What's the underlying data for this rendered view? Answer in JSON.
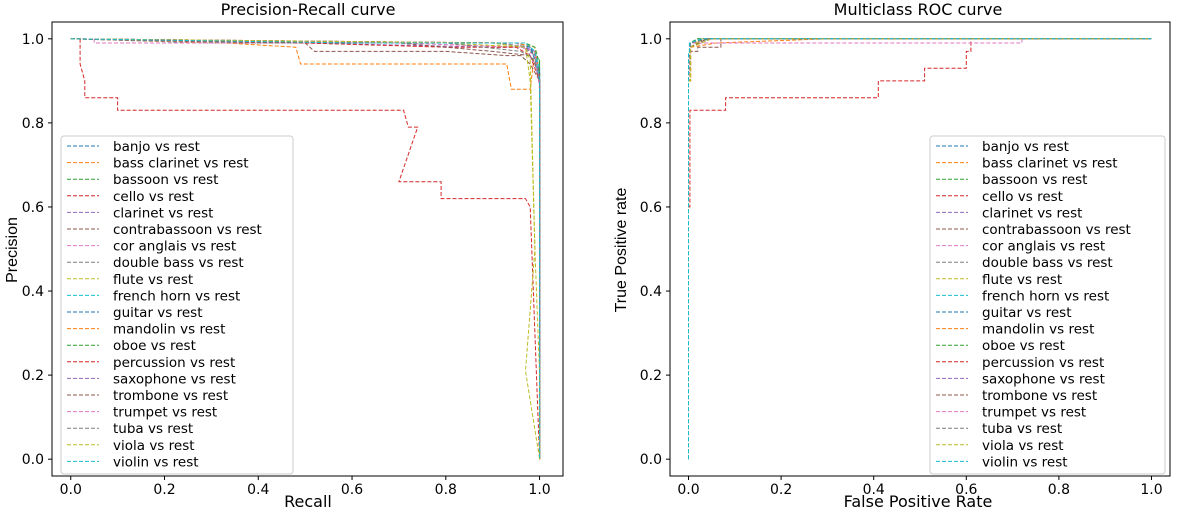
{
  "colors": [
    "#1f77b4",
    "#ff7f0e",
    "#2ca02c",
    "#d62728",
    "#9467bd",
    "#8c564b",
    "#e377c2",
    "#7f7f7f",
    "#bcbd22",
    "#17becf"
  ],
  "chart_data": [
    {
      "type": "line",
      "title": "Precision-Recall curve",
      "xlabel": "Recall",
      "ylabel": "Precision",
      "xlim": [
        -0.04,
        1.05
      ],
      "ylim": [
        -0.04,
        1.04
      ],
      "xticks": [
        0.0,
        0.2,
        0.4,
        0.6,
        0.8,
        1.0
      ],
      "xtick_labels": [
        "0.0",
        "0.2",
        "0.4",
        "0.6",
        "0.8",
        "1.0"
      ],
      "yticks": [
        0.0,
        0.2,
        0.4,
        0.6,
        0.8,
        1.0
      ],
      "ytick_labels": [
        "0.0",
        "0.2",
        "0.4",
        "0.6",
        "0.8",
        "1.0"
      ],
      "legend_position": "center-left",
      "series": [
        {
          "name": "banjo vs rest",
          "x": [
            0.0,
            0.3,
            0.9,
            0.97,
            0.99,
            1.0,
            1.0
          ],
          "y": [
            1.0,
            0.99,
            0.99,
            0.98,
            0.96,
            0.9,
            0.0
          ]
        },
        {
          "name": "bass clarinet vs rest",
          "x": [
            0.0,
            0.33,
            0.48,
            0.49,
            0.93,
            0.94,
            0.98,
            0.99,
            1.0,
            1.0
          ],
          "y": [
            1.0,
            0.99,
            0.98,
            0.94,
            0.94,
            0.88,
            0.88,
            0.97,
            0.9,
            0.0
          ]
        },
        {
          "name": "bassoon vs rest",
          "x": [
            0.0,
            0.6,
            0.95,
            0.98,
            1.0,
            1.0
          ],
          "y": [
            1.0,
            0.99,
            0.99,
            0.97,
            0.95,
            0.0
          ]
        },
        {
          "name": "cello vs rest",
          "x": [
            0.02,
            0.02,
            0.03,
            0.03,
            0.1,
            0.1,
            0.71,
            0.72,
            0.74,
            0.7,
            0.79,
            0.79,
            0.97,
            0.98,
            1.0
          ],
          "y": [
            1.0,
            0.94,
            0.9,
            0.86,
            0.86,
            0.83,
            0.83,
            0.79,
            0.79,
            0.66,
            0.66,
            0.62,
            0.62,
            0.6,
            0.0
          ]
        },
        {
          "name": "clarinet vs rest",
          "x": [
            0.0,
            0.5,
            0.9,
            0.97,
            0.99,
            1.0,
            1.0
          ],
          "y": [
            1.0,
            0.99,
            0.98,
            0.98,
            0.97,
            0.92,
            0.0
          ]
        },
        {
          "name": "contrabassoon vs rest",
          "x": [
            0.0,
            0.5,
            0.52,
            0.8,
            0.93,
            0.96,
            0.98,
            1.0,
            1.0
          ],
          "y": [
            1.0,
            0.99,
            0.97,
            0.97,
            0.96,
            0.96,
            0.94,
            0.9,
            0.0
          ]
        },
        {
          "name": "cor anglais vs rest",
          "x": [
            0.05,
            0.05,
            0.2,
            0.7,
            0.96,
            0.99,
            1.0,
            1.0
          ],
          "y": [
            1.0,
            0.99,
            0.99,
            0.99,
            0.98,
            0.97,
            0.88,
            0.0
          ]
        },
        {
          "name": "double bass vs rest",
          "x": [
            0.0,
            0.4,
            0.95,
            0.98,
            0.99,
            1.0,
            1.0
          ],
          "y": [
            1.0,
            0.99,
            0.99,
            0.98,
            0.96,
            0.9,
            0.0
          ]
        },
        {
          "name": "flute vs rest",
          "x": [
            0.0,
            0.8,
            0.97,
            0.98,
            0.99,
            0.97,
            1.0
          ],
          "y": [
            1.0,
            0.99,
            0.98,
            0.9,
            0.5,
            0.21,
            0.0
          ]
        },
        {
          "name": "french horn vs rest",
          "x": [
            0.0,
            0.5,
            0.97,
            0.99,
            1.0,
            1.0
          ],
          "y": [
            1.0,
            0.99,
            0.99,
            0.97,
            0.93,
            0.0
          ]
        },
        {
          "name": "guitar vs rest",
          "x": [
            0.0,
            0.9,
            0.98,
            1.0,
            1.0
          ],
          "y": [
            1.0,
            0.99,
            0.98,
            0.92,
            0.0
          ]
        },
        {
          "name": "mandolin vs rest",
          "x": [
            0.0,
            0.95,
            0.99,
            1.0,
            1.0
          ],
          "y": [
            1.0,
            0.99,
            0.98,
            0.9,
            0.0
          ]
        },
        {
          "name": "oboe vs rest",
          "x": [
            0.0,
            0.9,
            0.97,
            0.99,
            1.0,
            1.0
          ],
          "y": [
            1.0,
            0.99,
            0.99,
            0.98,
            0.94,
            0.0
          ]
        },
        {
          "name": "percussion vs rest",
          "x": [
            0.0,
            0.5,
            0.8,
            0.95,
            0.98,
            1.0,
            1.0
          ],
          "y": [
            1.0,
            0.99,
            0.98,
            0.98,
            0.96,
            0.9,
            0.0
          ]
        },
        {
          "name": "saxophone vs rest",
          "x": [
            0.0,
            0.92,
            0.97,
            0.99,
            1.0,
            1.0
          ],
          "y": [
            1.0,
            0.99,
            0.98,
            0.94,
            0.9,
            0.0
          ]
        },
        {
          "name": "trombone vs rest",
          "x": [
            0.0,
            0.7,
            0.9,
            0.98,
            1.0,
            1.0
          ],
          "y": [
            1.0,
            0.99,
            0.97,
            0.96,
            0.92,
            0.0
          ]
        },
        {
          "name": "trumpet vs rest",
          "x": [
            0.0,
            0.85,
            0.95,
            0.99,
            1.0,
            1.0
          ],
          "y": [
            1.0,
            0.99,
            0.99,
            0.96,
            0.9,
            0.0
          ]
        },
        {
          "name": "tuba vs rest",
          "x": [
            0.0,
            0.8,
            0.96,
            0.99,
            1.0,
            1.0
          ],
          "y": [
            1.0,
            0.99,
            0.97,
            0.95,
            0.9,
            0.0
          ]
        },
        {
          "name": "viola vs rest",
          "x": [
            0.0,
            0.9,
            0.97,
            0.98,
            0.99,
            1.0,
            1.0
          ],
          "y": [
            1.0,
            0.99,
            0.98,
            0.95,
            0.5,
            0.2,
            0.0
          ]
        },
        {
          "name": "violin vs rest",
          "x": [
            0.0,
            0.6,
            0.97,
            0.99,
            1.0,
            1.0
          ],
          "y": [
            1.0,
            0.99,
            0.99,
            0.97,
            0.9,
            0.0
          ]
        }
      ]
    },
    {
      "type": "line",
      "title": "Multiclass ROC curve",
      "xlabel": "False Positive Rate",
      "ylabel": "True Positive rate",
      "xlim": [
        -0.04,
        1.04
      ],
      "ylim": [
        -0.04,
        1.04
      ],
      "xticks": [
        0.0,
        0.2,
        0.4,
        0.6,
        0.8,
        1.0
      ],
      "xtick_labels": [
        "0.0",
        "0.2",
        "0.4",
        "0.6",
        "0.8",
        "1.0"
      ],
      "yticks": [
        0.0,
        0.2,
        0.4,
        0.6,
        0.8,
        1.0
      ],
      "ytick_labels": [
        "0.0",
        "0.2",
        "0.4",
        "0.6",
        "0.8",
        "1.0"
      ],
      "legend_position": "lower-right",
      "series": [
        {
          "name": "banjo vs rest",
          "x": [
            0.0,
            0.0,
            0.004,
            0.004,
            0.04,
            1.0
          ],
          "y": [
            0.0,
            0.93,
            0.93,
            0.99,
            1.0,
            1.0
          ]
        },
        {
          "name": "bass clarinet vs rest",
          "x": [
            0.0,
            0.0,
            0.005,
            0.005,
            0.06,
            0.3,
            1.0
          ],
          "y": [
            0.0,
            0.9,
            0.9,
            0.98,
            0.99,
            1.0,
            1.0
          ]
        },
        {
          "name": "bassoon vs rest",
          "x": [
            0.0,
            0.0,
            0.003,
            0.003,
            0.05,
            1.0
          ],
          "y": [
            0.0,
            0.94,
            0.94,
            0.99,
            1.0,
            1.0
          ]
        },
        {
          "name": "cello vs rest",
          "x": [
            0.0,
            0.0,
            0.003,
            0.003,
            0.08,
            0.08,
            0.41,
            0.41,
            0.51,
            0.51,
            0.6,
            0.6,
            0.61,
            0.61,
            1.0
          ],
          "y": [
            0.0,
            0.6,
            0.6,
            0.83,
            0.83,
            0.86,
            0.86,
            0.9,
            0.9,
            0.93,
            0.93,
            0.97,
            0.97,
            1.0,
            1.0
          ]
        },
        {
          "name": "clarinet vs rest",
          "x": [
            0.0,
            0.0,
            0.004,
            0.004,
            0.05,
            1.0
          ],
          "y": [
            0.0,
            0.92,
            0.92,
            0.98,
            1.0,
            1.0
          ]
        },
        {
          "name": "contrabassoon vs rest",
          "x": [
            0.0,
            0.0,
            0.003,
            0.003,
            0.02,
            0.02,
            0.07,
            0.07,
            1.0
          ],
          "y": [
            0.0,
            0.9,
            0.9,
            0.97,
            0.97,
            0.98,
            0.98,
            1.0,
            1.0
          ]
        },
        {
          "name": "cor anglais vs rest",
          "x": [
            0.0,
            0.0,
            0.003,
            0.003,
            0.72,
            0.72,
            1.0
          ],
          "y": [
            0.0,
            0.96,
            0.96,
            0.99,
            0.99,
            1.0,
            1.0
          ]
        },
        {
          "name": "double bass vs rest",
          "x": [
            0.0,
            0.0,
            0.003,
            0.003,
            0.04,
            1.0
          ],
          "y": [
            0.0,
            0.94,
            0.94,
            0.99,
            1.0,
            1.0
          ]
        },
        {
          "name": "flute vs rest",
          "x": [
            0.0,
            0.0,
            0.004,
            0.004,
            0.03,
            1.0
          ],
          "y": [
            0.0,
            0.9,
            0.9,
            0.98,
            1.0,
            1.0
          ]
        },
        {
          "name": "french horn vs rest",
          "x": [
            0.0,
            0.0,
            0.003,
            0.003,
            0.03,
            1.0
          ],
          "y": [
            0.0,
            0.95,
            0.95,
            0.99,
            1.0,
            1.0
          ]
        },
        {
          "name": "guitar vs rest",
          "x": [
            0.0,
            0.0,
            0.003,
            0.003,
            0.02,
            1.0
          ],
          "y": [
            0.0,
            0.96,
            0.96,
            0.99,
            1.0,
            1.0
          ]
        },
        {
          "name": "mandolin vs rest",
          "x": [
            0.0,
            0.0,
            0.003,
            0.003,
            0.03,
            1.0
          ],
          "y": [
            0.0,
            0.95,
            0.95,
            0.99,
            1.0,
            1.0
          ]
        },
        {
          "name": "oboe vs rest",
          "x": [
            0.0,
            0.0,
            0.003,
            0.003,
            0.02,
            1.0
          ],
          "y": [
            0.0,
            0.96,
            0.96,
            0.99,
            1.0,
            1.0
          ]
        },
        {
          "name": "percussion vs rest",
          "x": [
            0.0,
            0.0,
            0.003,
            0.003,
            0.04,
            1.0
          ],
          "y": [
            0.0,
            0.95,
            0.95,
            0.99,
            1.0,
            1.0
          ]
        },
        {
          "name": "saxophone vs rest",
          "x": [
            0.0,
            0.0,
            0.004,
            0.004,
            0.05,
            1.0
          ],
          "y": [
            0.0,
            0.92,
            0.92,
            0.98,
            1.0,
            1.0
          ]
        },
        {
          "name": "trombone vs rest",
          "x": [
            0.0,
            0.0,
            0.003,
            0.003,
            0.04,
            1.0
          ],
          "y": [
            0.0,
            0.93,
            0.93,
            0.98,
            1.0,
            1.0
          ]
        },
        {
          "name": "trumpet vs rest",
          "x": [
            0.0,
            0.0,
            0.003,
            0.003,
            0.03,
            1.0
          ],
          "y": [
            0.0,
            0.94,
            0.94,
            0.99,
            1.0,
            1.0
          ]
        },
        {
          "name": "tuba vs rest",
          "x": [
            0.0,
            0.0,
            0.003,
            0.003,
            0.04,
            1.0
          ],
          "y": [
            0.0,
            0.93,
            0.93,
            0.99,
            1.0,
            1.0
          ]
        },
        {
          "name": "viola vs rest",
          "x": [
            0.0,
            0.0,
            0.004,
            0.004,
            0.05,
            1.0
          ],
          "y": [
            0.0,
            0.9,
            0.9,
            0.98,
            1.0,
            1.0
          ]
        },
        {
          "name": "violin vs rest",
          "x": [
            0.0,
            0.0,
            0.002,
            0.002,
            0.03,
            1.0
          ],
          "y": [
            0.0,
            0.97,
            0.97,
            0.99,
            1.0,
            1.0
          ]
        }
      ]
    }
  ]
}
